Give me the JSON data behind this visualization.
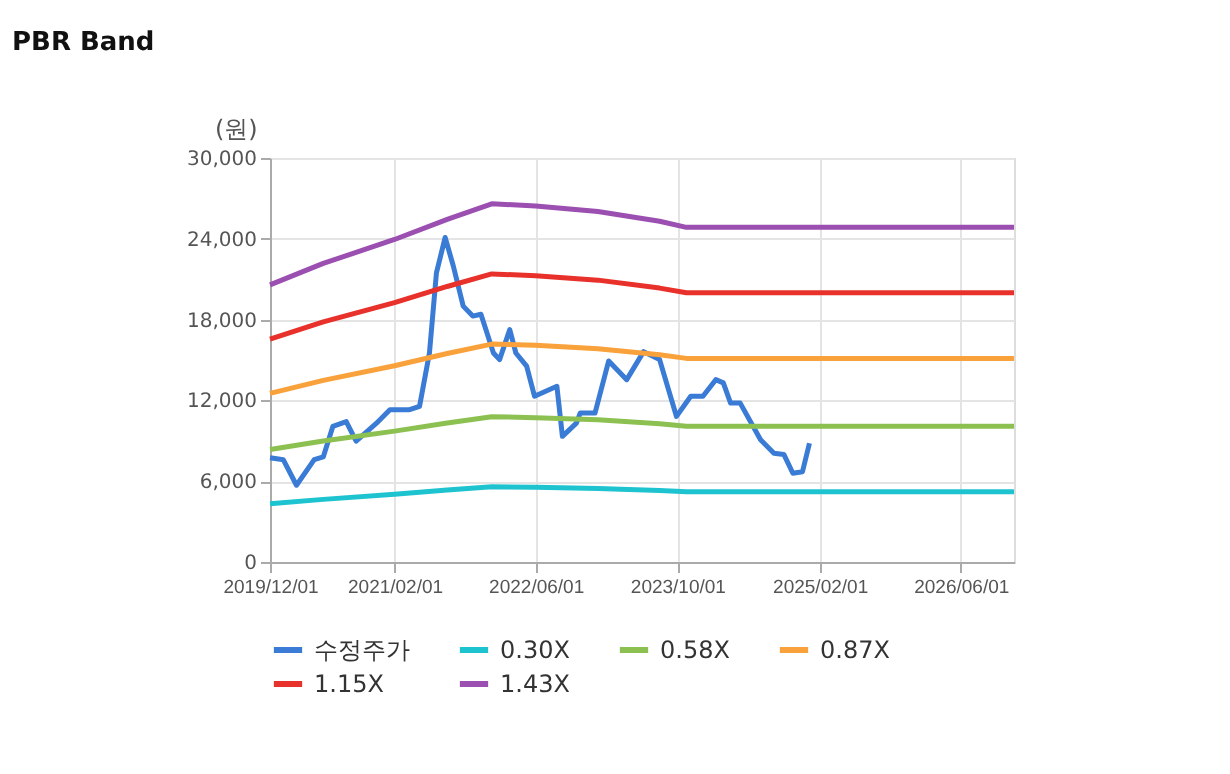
{
  "chart_data": {
    "type": "line",
    "title": "PBR Band",
    "ylabel": "(원)",
    "xlim": [
      "2019-12-01",
      "2026-12-01"
    ],
    "xticks": [
      {
        "value": "2019-12-01",
        "label": "2019/12/01"
      },
      {
        "value": "2021-02-01",
        "label": "2021/02/01"
      },
      {
        "value": "2022-06-01",
        "label": "2022/06/01"
      },
      {
        "value": "2023-10-01",
        "label": "2023/10/01"
      },
      {
        "value": "2025-02-01",
        "label": "2025/02/01"
      },
      {
        "value": "2026-06-01",
        "label": "2026/06/01"
      }
    ],
    "ylim": [
      0,
      30000
    ],
    "yticks": [
      {
        "value": 0,
        "label": "0"
      },
      {
        "value": 6000,
        "label": "6,000"
      },
      {
        "value": 12000,
        "label": "12,000"
      },
      {
        "value": 18000,
        "label": "18,000"
      },
      {
        "value": 24000,
        "label": "24,000"
      },
      {
        "value": 30000,
        "label": "30,000"
      }
    ],
    "grid": true,
    "legend": "bottom",
    "line_style": "solid",
    "marker": "none",
    "series": [
      {
        "name": "수정주가",
        "color": "#3a7bd5",
        "x": [
          "2019-12-01",
          "2020-01-16",
          "2020-03-01",
          "2020-05-01",
          "2020-06-01",
          "2020-07-04",
          "2020-08-19",
          "2020-09-22",
          "2020-12-01",
          "2021-01-16",
          "2021-03-25",
          "2021-04-28",
          "2021-06-01",
          "2021-06-25",
          "2021-07-25",
          "2021-08-22",
          "2021-09-25",
          "2021-10-28",
          "2021-11-25",
          "2022-01-07",
          "2022-01-28",
          "2022-03-04",
          "2022-03-25",
          "2022-05-01",
          "2022-05-28",
          "2022-08-13",
          "2022-09-01",
          "2022-10-19",
          "2022-11-01",
          "2022-12-22",
          "2023-02-07",
          "2023-04-10",
          "2023-06-07",
          "2023-08-01",
          "2023-09-28",
          "2023-11-16",
          "2023-12-28",
          "2024-02-10",
          "2024-03-07",
          "2024-04-01",
          "2024-05-04",
          "2024-07-13",
          "2024-08-28",
          "2024-10-01",
          "2024-11-01",
          "2024-12-04",
          "2024-12-28"
        ],
        "values": [
          7740,
          7590,
          5700,
          7600,
          7800,
          10070,
          10420,
          8970,
          10310,
          11310,
          11310,
          11560,
          15520,
          21470,
          24100,
          21980,
          19000,
          18260,
          18400,
          15520,
          15030,
          17260,
          15520,
          14540,
          12310,
          13050,
          9330,
          10310,
          11060,
          11060,
          14930,
          13540,
          15620,
          15030,
          10810,
          12310,
          12310,
          13540,
          13300,
          11800,
          11800,
          9080,
          8080,
          7990,
          6590,
          6700,
          8820
        ]
      },
      {
        "name": "0.30X",
        "color": "#1ec3d0",
        "x": [
          "2019-12-01",
          "2020-06-01",
          "2021-02-01",
          "2021-08-01",
          "2022-01-01",
          "2022-06-01",
          "2023-01-01",
          "2023-08-01",
          "2023-11-01",
          "2026-12-01"
        ],
        "values": [
          4320,
          4650,
          5030,
          5340,
          5580,
          5550,
          5460,
          5310,
          5210,
          5210
        ]
      },
      {
        "name": "0.58X",
        "color": "#8cc152",
        "x": [
          "2019-12-01",
          "2020-06-01",
          "2021-02-01",
          "2021-08-01",
          "2022-01-01",
          "2022-06-01",
          "2023-01-01",
          "2023-08-01",
          "2023-11-01",
          "2026-12-01"
        ],
        "values": [
          8350,
          8990,
          9720,
          10320,
          10790,
          10720,
          10560,
          10260,
          10080,
          10080
        ]
      },
      {
        "name": "0.87X",
        "color": "#f9a13a",
        "x": [
          "2019-12-01",
          "2020-06-01",
          "2021-02-01",
          "2021-08-01",
          "2022-01-01",
          "2022-06-01",
          "2023-01-01",
          "2023-08-01",
          "2023-11-01",
          "2026-12-01"
        ],
        "values": [
          12520,
          13490,
          14570,
          15480,
          16180,
          16090,
          15830,
          15390,
          15120,
          15120
        ]
      },
      {
        "name": "1.15X",
        "color": "#e8312a",
        "x": [
          "2019-12-01",
          "2020-06-01",
          "2021-02-01",
          "2021-08-01",
          "2022-01-01",
          "2022-06-01",
          "2023-01-01",
          "2023-08-01",
          "2023-11-01",
          "2026-12-01"
        ],
        "values": [
          16550,
          17830,
          19260,
          20460,
          21390,
          21260,
          20930,
          20340,
          19990,
          19990
        ]
      },
      {
        "name": "1.43X",
        "color": "#9b4fb0",
        "x": [
          "2019-12-01",
          "2020-06-01",
          "2021-02-01",
          "2021-08-01",
          "2022-01-01",
          "2022-06-01",
          "2023-01-01",
          "2023-08-01",
          "2023-11-01",
          "2026-12-01"
        ],
        "values": [
          20580,
          22170,
          23950,
          25440,
          26600,
          26440,
          26030,
          25300,
          24850,
          24850
        ]
      }
    ]
  }
}
